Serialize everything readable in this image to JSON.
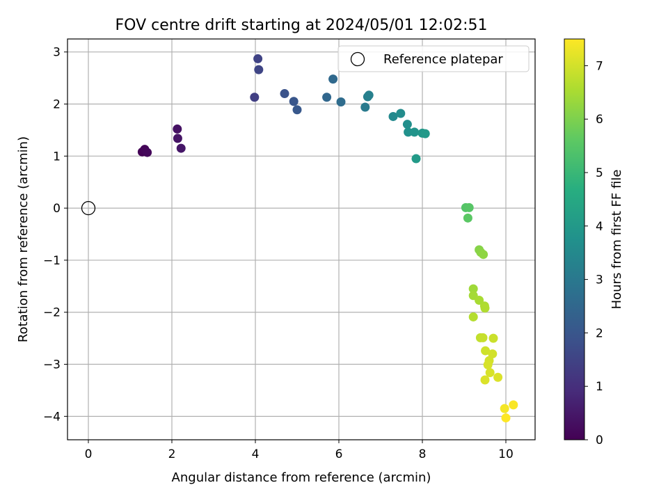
{
  "chart_data": {
    "type": "scatter",
    "title": "FOV centre drift starting at 2024/05/01 12:02:51",
    "xlabel": "Angular distance from reference (arcmin)",
    "ylabel": "Rotation from reference (arcmin)",
    "xlim": [
      -0.5,
      10.7
    ],
    "ylim": [
      -4.45,
      3.25
    ],
    "xticks": [
      0,
      2,
      4,
      6,
      8,
      10
    ],
    "yticks": [
      -4,
      -3,
      -2,
      -1,
      0,
      1,
      2,
      3
    ],
    "grid": true,
    "legend": {
      "position": "top-right",
      "entries": [
        "Reference platepar"
      ]
    },
    "reference_point": {
      "x": 0,
      "y": 0,
      "label": "Reference platepar"
    },
    "colorbar": {
      "label": "Hours from first FF file",
      "colormap": "viridis",
      "range": [
        0,
        7.5
      ],
      "ticks": [
        0,
        1,
        2,
        3,
        4,
        5,
        6,
        7
      ]
    },
    "points": [
      {
        "x": 1.29,
        "y": 1.08,
        "hours": 0.05
      },
      {
        "x": 1.35,
        "y": 1.13,
        "hours": 0.1
      },
      {
        "x": 1.41,
        "y": 1.07,
        "hours": 0.15
      },
      {
        "x": 2.13,
        "y": 1.52,
        "hours": 0.35
      },
      {
        "x": 2.14,
        "y": 1.34,
        "hours": 0.4
      },
      {
        "x": 2.22,
        "y": 1.15,
        "hours": 0.45
      },
      {
        "x": 3.98,
        "y": 2.13,
        "hours": 1.4
      },
      {
        "x": 4.06,
        "y": 2.87,
        "hours": 1.5
      },
      {
        "x": 4.08,
        "y": 2.66,
        "hours": 1.55
      },
      {
        "x": 4.7,
        "y": 2.2,
        "hours": 1.9
      },
      {
        "x": 4.92,
        "y": 2.05,
        "hours": 2.0
      },
      {
        "x": 5.0,
        "y": 1.89,
        "hours": 2.05
      },
      {
        "x": 5.71,
        "y": 2.13,
        "hours": 2.5
      },
      {
        "x": 5.86,
        "y": 2.48,
        "hours": 2.55
      },
      {
        "x": 6.05,
        "y": 2.04,
        "hours": 2.65
      },
      {
        "x": 6.63,
        "y": 1.94,
        "hours": 3.05
      },
      {
        "x": 6.69,
        "y": 2.14,
        "hours": 3.2
      },
      {
        "x": 6.72,
        "y": 2.17,
        "hours": 3.25
      },
      {
        "x": 7.3,
        "y": 1.76,
        "hours": 3.5
      },
      {
        "x": 7.48,
        "y": 1.82,
        "hours": 3.6
      },
      {
        "x": 7.64,
        "y": 1.61,
        "hours": 3.7
      },
      {
        "x": 7.66,
        "y": 1.46,
        "hours": 3.75
      },
      {
        "x": 7.81,
        "y": 1.46,
        "hours": 3.85
      },
      {
        "x": 8.0,
        "y": 1.44,
        "hours": 3.95
      },
      {
        "x": 8.07,
        "y": 1.43,
        "hours": 4.0
      },
      {
        "x": 7.85,
        "y": 0.95,
        "hours": 4.05
      },
      {
        "x": 9.04,
        "y": 0.01,
        "hours": 5.45
      },
      {
        "x": 9.12,
        "y": 0.01,
        "hours": 5.5
      },
      {
        "x": 9.09,
        "y": -0.19,
        "hours": 5.55
      },
      {
        "x": 9.36,
        "y": -0.8,
        "hours": 6.1
      },
      {
        "x": 9.4,
        "y": -0.85,
        "hours": 6.15
      },
      {
        "x": 9.46,
        "y": -0.89,
        "hours": 6.2
      },
      {
        "x": 9.22,
        "y": -1.55,
        "hours": 6.4
      },
      {
        "x": 9.22,
        "y": -1.68,
        "hours": 6.45
      },
      {
        "x": 9.36,
        "y": -1.77,
        "hours": 6.5
      },
      {
        "x": 9.49,
        "y": -1.88,
        "hours": 6.55
      },
      {
        "x": 9.5,
        "y": -1.92,
        "hours": 6.6
      },
      {
        "x": 9.22,
        "y": -2.09,
        "hours": 6.65
      },
      {
        "x": 9.39,
        "y": -2.49,
        "hours": 6.8
      },
      {
        "x": 9.45,
        "y": -2.49,
        "hours": 6.85
      },
      {
        "x": 9.7,
        "y": -2.5,
        "hours": 6.9
      },
      {
        "x": 9.51,
        "y": -2.74,
        "hours": 6.95
      },
      {
        "x": 9.68,
        "y": -2.8,
        "hours": 7.0
      },
      {
        "x": 9.6,
        "y": -2.93,
        "hours": 7.0
      },
      {
        "x": 9.57,
        "y": -3.01,
        "hours": 7.05
      },
      {
        "x": 9.62,
        "y": -3.16,
        "hours": 7.05
      },
      {
        "x": 9.81,
        "y": -3.25,
        "hours": 7.1
      },
      {
        "x": 9.5,
        "y": -3.3,
        "hours": 7.1
      },
      {
        "x": 9.97,
        "y": -3.85,
        "hours": 7.4
      },
      {
        "x": 10.18,
        "y": -3.78,
        "hours": 7.45
      },
      {
        "x": 10.0,
        "y": -4.03,
        "hours": 7.5
      }
    ]
  }
}
